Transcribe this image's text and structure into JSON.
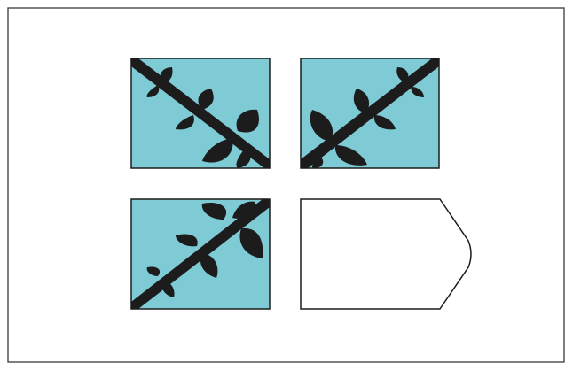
{
  "colors": {
    "background": "#ffffff",
    "frame_stroke": "#3a3a3a",
    "panel_fill": "#7ecbd6",
    "branch_fill": "#1c1c1c",
    "outline": "#1c1c1c"
  },
  "panels": [
    {
      "id": "top-left",
      "motif": "branch",
      "orientation": "diagonal-down-right"
    },
    {
      "id": "top-right",
      "motif": "branch",
      "orientation": "diagonal-up-right"
    },
    {
      "id": "bottom-left",
      "motif": "branch",
      "orientation": "diagonal-up-right"
    },
    {
      "id": "bottom-right",
      "motif": "blank-answer-shape"
    }
  ]
}
